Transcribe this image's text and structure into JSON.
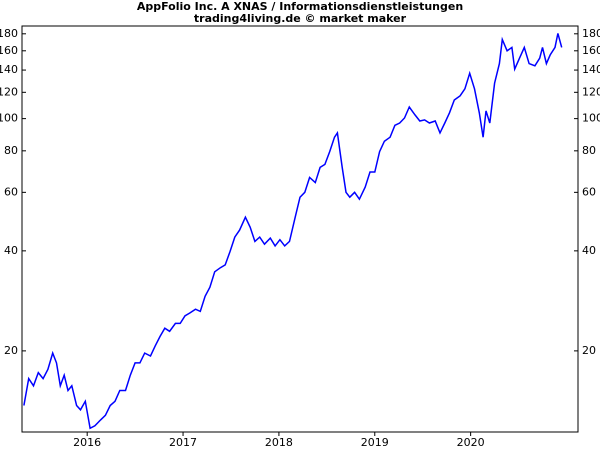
{
  "chart_data": {
    "type": "line",
    "title": "AppFolio Inc. A XNAS / Informationsdienstleistungen",
    "subtitle": "trading4living.de © market maker",
    "log_scale": true,
    "grid": false,
    "xlim": [
      2015.32,
      2021.12
    ],
    "xticks": [
      2016,
      2017,
      2018,
      2019,
      2020
    ],
    "ylim": [
      11.4,
      190
    ],
    "yticks": [
      20,
      40,
      60,
      80,
      100,
      120,
      140,
      160,
      180
    ],
    "x": [
      2015.34,
      2015.39,
      2015.44,
      2015.49,
      2015.54,
      2015.59,
      2015.64,
      2015.68,
      2015.72,
      2015.76,
      2015.8,
      2015.84,
      2015.89,
      2015.93,
      2015.98,
      2016.03,
      2016.08,
      2016.14,
      2016.19,
      2016.24,
      2016.29,
      2016.34,
      2016.4,
      2016.45,
      2016.5,
      2016.55,
      2016.6,
      2016.66,
      2016.71,
      2016.76,
      2016.81,
      2016.86,
      2016.92,
      2016.97,
      2017.02,
      2017.07,
      2017.13,
      2017.18,
      2017.23,
      2017.28,
      2017.33,
      2017.39,
      2017.44,
      2017.49,
      2017.54,
      2017.59,
      2017.65,
      2017.7,
      2017.75,
      2017.8,
      2017.85,
      2017.91,
      2017.96,
      2018.01,
      2018.06,
      2018.11,
      2018.17,
      2018.22,
      2018.27,
      2018.32,
      2018.38,
      2018.43,
      2018.48,
      2018.53,
      2018.58,
      2018.61,
      2018.66,
      2018.7,
      2018.74,
      2018.79,
      2018.84,
      2018.9,
      2018.95,
      2019.0,
      2019.05,
      2019.1,
      2019.16,
      2019.21,
      2019.26,
      2019.31,
      2019.36,
      2019.42,
      2019.47,
      2019.52,
      2019.57,
      2019.63,
      2019.68,
      2019.73,
      2019.78,
      2019.83,
      2019.89,
      2019.94,
      2019.99,
      2020.04,
      2020.09,
      2020.13,
      2020.16,
      2020.2,
      2020.25,
      2020.3,
      2020.33,
      2020.38,
      2020.43,
      2020.46,
      2020.51,
      2020.56,
      2020.61,
      2020.67,
      2020.72,
      2020.75,
      2020.79,
      2020.83,
      2020.88,
      2020.91,
      2020.95
    ],
    "series": [
      {
        "color": "#0000ff",
        "values": [
          13.7,
          16.5,
          15.7,
          17.2,
          16.5,
          17.6,
          19.7,
          18.4,
          15.7,
          16.9,
          15.2,
          15.7,
          13.7,
          13.3,
          14.1,
          11.7,
          11.9,
          12.4,
          12.8,
          13.7,
          14.1,
          15.2,
          15.2,
          16.9,
          18.4,
          18.4,
          19.7,
          19.3,
          20.7,
          22.1,
          23.4,
          22.9,
          24.2,
          24.2,
          25.5,
          26.0,
          26.7,
          26.3,
          29.2,
          31.1,
          34.6,
          35.6,
          36.3,
          39.8,
          44.0,
          46.2,
          50.5,
          47.1,
          42.7,
          44.0,
          41.9,
          43.7,
          41.4,
          43.2,
          41.4,
          42.7,
          50.5,
          58.0,
          60.0,
          66.5,
          64.2,
          71.3,
          72.8,
          79.6,
          87.9,
          90.6,
          71.3,
          60.0,
          58.0,
          60.0,
          57.2,
          62.2,
          69.1,
          69.1,
          79.6,
          85.5,
          87.9,
          95.5,
          97.0,
          100.4,
          108.4,
          102.6,
          98.4,
          99.1,
          97.0,
          98.4,
          90.6,
          97.0,
          104.1,
          113.8,
          117.1,
          123.0,
          136.9,
          123.0,
          104.1,
          87.9,
          105.5,
          97.0,
          127.9,
          146.4,
          173.0,
          160.0,
          163.8,
          140.9,
          152.0,
          163.8,
          146.4,
          144.2,
          152.0,
          163.8,
          146.4,
          155.5,
          163.8,
          180.5,
          163.8
        ]
      }
    ]
  }
}
